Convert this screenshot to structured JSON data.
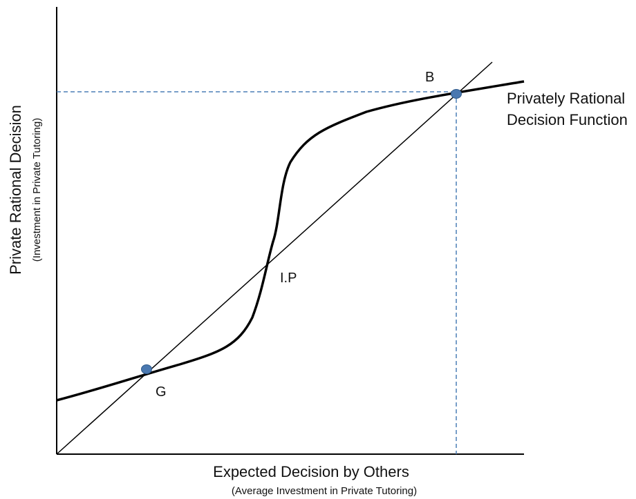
{
  "diagram": {
    "x_axis_label": "Expected Decision by Others",
    "x_axis_sublabel": "(Average Investment in Private Tutoring)",
    "y_axis_label": "Private Rational Decision",
    "y_axis_sublabel": "(Investment in Private Tutoring)",
    "curve_label_line1": "Privately Rational",
    "curve_label_line2": "Decision Function",
    "point_labels": {
      "G": "G",
      "IP": "I.P",
      "B": "B"
    },
    "colors": {
      "curve": "#000000",
      "axes": "#000000",
      "guide_lines": "#4a7eb5",
      "points": "#4a78b0"
    }
  }
}
